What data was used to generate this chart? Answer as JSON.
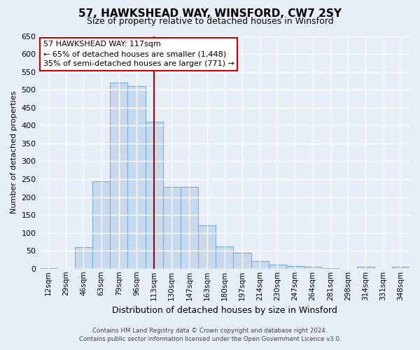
{
  "title": "57, HAWKSHEAD WAY, WINSFORD, CW7 2SY",
  "subtitle": "Size of property relative to detached houses in Winsford",
  "xlabel": "Distribution of detached houses by size in Winsford",
  "ylabel": "Number of detached properties",
  "bin_labels": [
    "12sqm",
    "29sqm",
    "46sqm",
    "63sqm",
    "79sqm",
    "96sqm",
    "113sqm",
    "130sqm",
    "147sqm",
    "163sqm",
    "180sqm",
    "197sqm",
    "214sqm",
    "230sqm",
    "247sqm",
    "264sqm",
    "281sqm",
    "298sqm",
    "314sqm",
    "331sqm",
    "348sqm"
  ],
  "bar_values": [
    2,
    0,
    60,
    245,
    520,
    510,
    410,
    228,
    228,
    120,
    63,
    44,
    22,
    12,
    7,
    5,
    2,
    0,
    5,
    0,
    5
  ],
  "bar_color": "#c8d9ed",
  "bar_edge_color": "#6aaad4",
  "vline_x_index": 6,
  "vline_color": "#aa0000",
  "ylim": [
    0,
    650
  ],
  "annotation_title": "57 HAWKSHEAD WAY: 117sqm",
  "annotation_line1": "← 65% of detached houses are smaller (1,448)",
  "annotation_line2": "35% of semi-detached houses are larger (771) →",
  "annotation_box_color": "#ffffff",
  "annotation_box_edge": "#cc0000",
  "footer_line1": "Contains HM Land Registry data © Crown copyright and database right 2024.",
  "footer_line2": "Contains public sector information licensed under the Open Government Licence v3.0.",
  "bg_color": "#e8eef8",
  "plot_bg_color": "#e8eef8",
  "grid_color": "#ffffff",
  "title_fontsize": 11,
  "subtitle_fontsize": 9,
  "ylabel_fontsize": 8,
  "xlabel_fontsize": 9
}
